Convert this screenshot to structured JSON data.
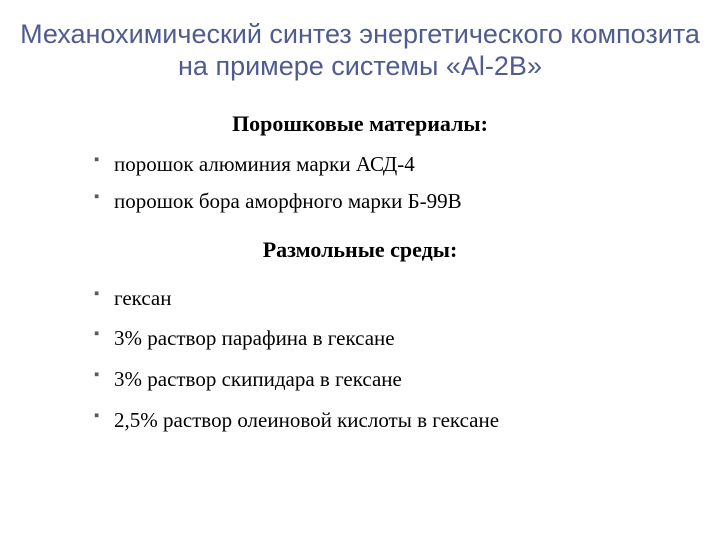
{
  "title_color": "#4f5c8d",
  "title": "Механохимический синтез энергетического композита на примере системы «Al-2B»",
  "sections": [
    {
      "header": "Порошковые материалы:",
      "items": [
        "порошок алюминия марки АСД-4",
        "порошок бора аморфного марки Б-99В"
      ]
    },
    {
      "header": "Размольные среды:",
      "items": [
        "гексан",
        "3% раствор парафина в гексане",
        "3% раствор скипидара в гексане",
        "2,5% раствор олеиновой кислоты в гексане"
      ]
    }
  ]
}
